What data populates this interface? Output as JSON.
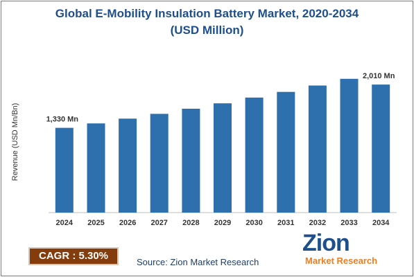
{
  "title_line1": "Global E-Mobility Insulation Battery Market, 2020-2034",
  "title_line2": "(USD Million)",
  "colors": {
    "bar": "#2e6fae",
    "title": "#1f4e8c",
    "cagr_bg": "#843c0c",
    "logo_orange": "#ef7d22"
  },
  "cagr_label": "CAGR : 5.30%",
  "source": "Source: Zion Market Research",
  "logo": {
    "word": "Zion",
    "sub": "Market Research"
  },
  "chart_data": {
    "type": "bar",
    "title": "Global E-Mobility Insulation Battery Market, 2020-2034 (USD Million)",
    "ylabel": "Revenue (USD Mn/Bn)",
    "xlabel": "",
    "categories": [
      "2024",
      "2025",
      "2026",
      "2027",
      "2028",
      "2029",
      "2030",
      "2031",
      "2032",
      "2033",
      "2034"
    ],
    "values": [
      1330,
      1400,
      1475,
      1550,
      1630,
      1715,
      1805,
      1895,
      1995,
      2100,
      2010
    ],
    "data_labels": {
      "0": "1,330 Mn",
      "10": "2,010 Mn"
    },
    "ylim": [
      0,
      2250
    ],
    "grid": false,
    "legend": "none"
  }
}
